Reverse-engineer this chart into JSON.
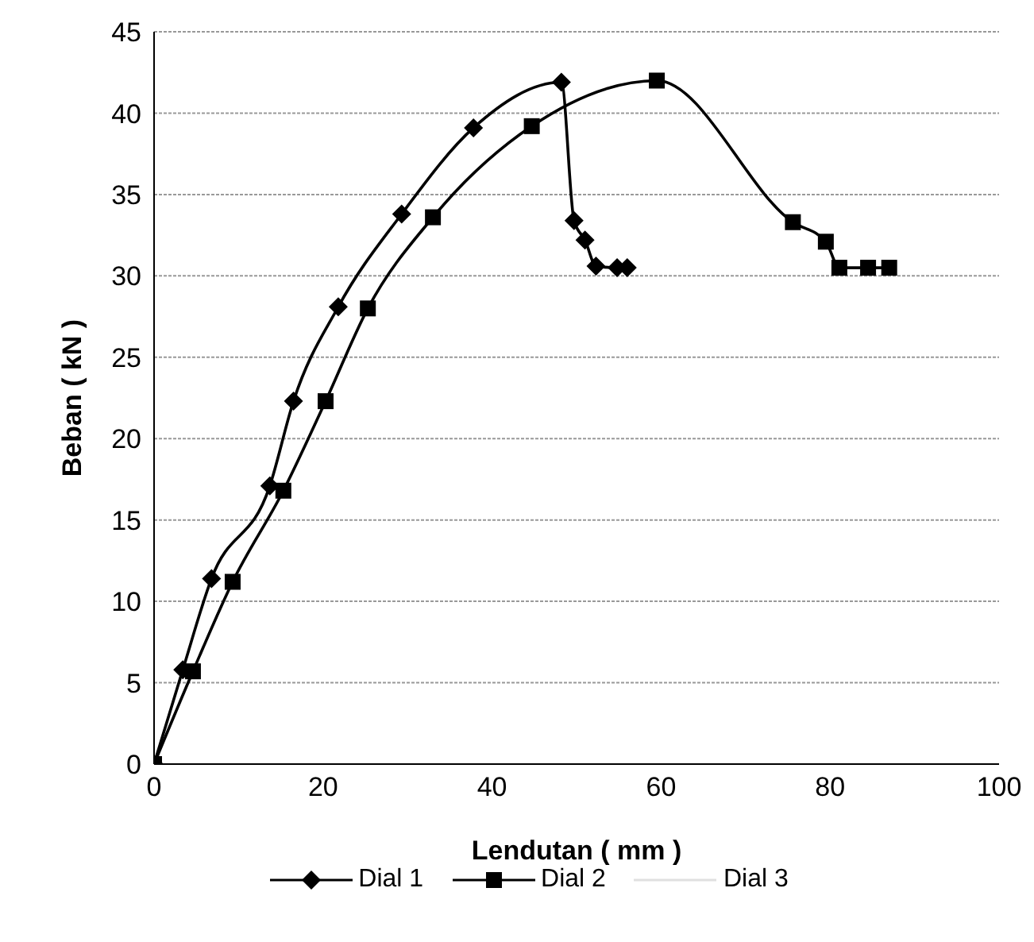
{
  "chart_data": {
    "type": "line",
    "xlabel": "Lendutan ( mm )",
    "ylabel": "Beban ( kN )",
    "xlim": [
      0,
      100
    ],
    "xticks": [
      0,
      20,
      40,
      60,
      80,
      100
    ],
    "ylim": [
      0,
      45
    ],
    "yticks": [
      0,
      5,
      10,
      15,
      20,
      25,
      30,
      35,
      40,
      45
    ],
    "grid": "y",
    "legend": "bottom",
    "line_style": "solid",
    "series": [
      {
        "name": "Dial 1",
        "color": "#000000",
        "marker": "diamond",
        "x": [
          0,
          3.4,
          6.8,
          13.7,
          16.5,
          21.8,
          29.3,
          37.8,
          48.2,
          49.7,
          51.0,
          52.3,
          54.8,
          56.0
        ],
        "values": [
          0,
          5.8,
          11.4,
          17.1,
          22.3,
          28.1,
          33.8,
          39.1,
          41.9,
          33.4,
          32.2,
          30.6,
          30.5,
          30.5
        ]
      },
      {
        "name": "Dial 2",
        "color": "#000000",
        "marker": "square",
        "x": [
          0,
          4.6,
          9.3,
          15.3,
          20.3,
          25.3,
          33.0,
          44.7,
          59.5,
          75.6,
          79.5,
          81.1,
          84.5,
          87.0
        ],
        "values": [
          0,
          5.7,
          11.2,
          16.8,
          22.3,
          28.0,
          33.6,
          39.2,
          42.0,
          33.3,
          32.1,
          30.5,
          30.5,
          30.5
        ]
      },
      {
        "name": "Dial 3",
        "color": "#e0e0e0",
        "marker": "none"
      }
    ]
  }
}
